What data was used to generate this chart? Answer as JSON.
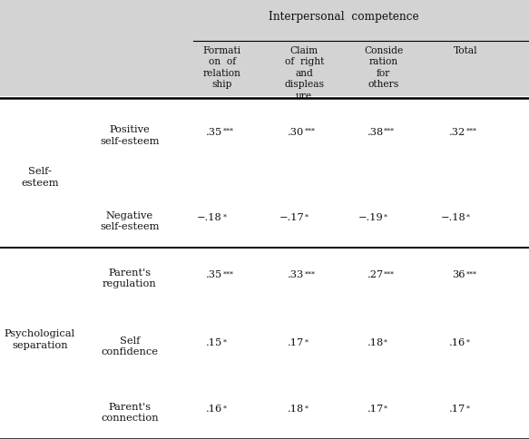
{
  "bg_color": "#d3d3d3",
  "data_bg": "#ffffff",
  "header_span": "Interpersonal  competence",
  "col_headers": [
    "Formati\non  of\nrelation\nship",
    "Claim\nof  right\nand\ndispleas\nure",
    "Conside\nration\nfor\nothers",
    "Total"
  ],
  "group1_label": "Self-\nesteem",
  "group2_label": "Psychological\nseparation",
  "row_labels": [
    "Positive\nself-esteem",
    "Negative\nself-esteem",
    "Parent's\nregulation",
    "Self\nconfidence",
    "Parent's\nconnection"
  ],
  "row_values": [
    [
      ".35",
      ".30",
      ".38",
      ".32"
    ],
    [
      "−.18",
      "−.17",
      "−.19",
      "−.18"
    ],
    [
      ".35",
      ".33",
      ".27",
      "36"
    ],
    [
      ".15",
      ".17",
      ".18",
      ".16"
    ],
    [
      ".16",
      ".18",
      ".17",
      ".17"
    ]
  ],
  "row_sups": [
    [
      "***",
      "***",
      "***",
      "***"
    ],
    [
      "*",
      "*",
      "*",
      "*"
    ],
    [
      "***",
      "***",
      "***",
      "***"
    ],
    [
      "*",
      "*",
      "*",
      "*"
    ],
    [
      "*",
      "*",
      "*",
      "*"
    ]
  ],
  "font_size": 8.2,
  "text_color": "#111111"
}
